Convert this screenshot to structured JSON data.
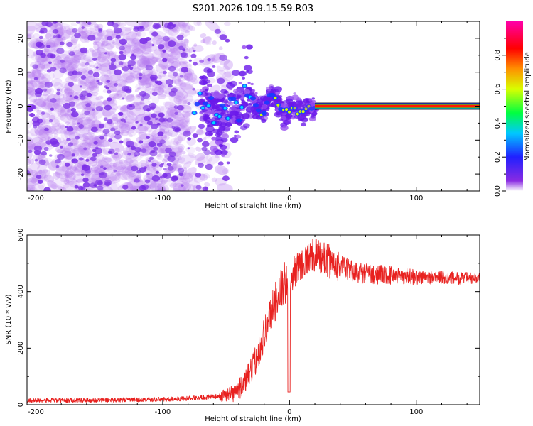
{
  "page_title": "S201.2026.109.15.59.R03",
  "colors": {
    "snr_line": "#e8211f",
    "axis": "#000000"
  },
  "chart_data": [
    {
      "type": "heatmap",
      "name": "spectrogram",
      "xlabel": "Height of straight line (km)",
      "ylabel": "Frequency (Hz)",
      "xlim": [
        -207,
        150
      ],
      "ylim": [
        -25,
        25
      ],
      "xticks": [
        -200,
        -100,
        0,
        100
      ],
      "xtick_labels": [
        "-200",
        "-100",
        "0",
        "100"
      ],
      "yticks": [
        -20,
        -10,
        0,
        10,
        20
      ],
      "ytick_labels": [
        "-20",
        "-10",
        "0",
        "10",
        "20"
      ],
      "noise_region_x": [
        -207,
        -48
      ],
      "transition_region_x": [
        -90,
        20
      ],
      "signal_band": {
        "x_start": 20,
        "x_end": 150,
        "frequency": 0
      },
      "colorbar": {
        "label": "Normalized spectral amplitude",
        "range": [
          0,
          1
        ],
        "ticks": [
          0,
          0.2,
          0.4,
          0.6,
          0.8
        ],
        "tick_labels": [
          "0.0",
          "0.2",
          "0.4",
          "0.6",
          "0.8"
        ],
        "colormap": [
          "#ffffff",
          "#8a2be2",
          "#2020ff",
          "#00c8ff",
          "#00ff40",
          "#d8ff00",
          "#ff9000",
          "#ff0000",
          "#ff00aa"
        ]
      }
    },
    {
      "type": "line",
      "name": "snr",
      "xlabel": "Height of straight line (km)",
      "ylabel": "SNR (10 * v/v)",
      "xlim": [
        -207,
        150
      ],
      "ylim": [
        0,
        600
      ],
      "xticks": [
        -200,
        -100,
        0,
        100
      ],
      "xtick_labels": [
        "-200",
        "-100",
        "0",
        "100"
      ],
      "yticks": [
        0,
        200,
        400,
        600
      ],
      "ytick_labels": [
        "0",
        "200",
        "400",
        "600"
      ],
      "series": [
        {
          "name": "SNR",
          "x": [
            -207,
            -190,
            -170,
            -150,
            -130,
            -110,
            -90,
            -70,
            -55,
            -45,
            -40,
            -35,
            -30,
            -25,
            -20,
            -15,
            -10,
            -5,
            0,
            5,
            10,
            15,
            20,
            25,
            30,
            40,
            50,
            60,
            70,
            80,
            90,
            100,
            110,
            120,
            130,
            140,
            150
          ],
          "values": [
            15,
            15,
            16,
            16,
            17,
            18,
            20,
            25,
            30,
            40,
            55,
            80,
            120,
            180,
            250,
            320,
            380,
            420,
            450,
            480,
            500,
            520,
            530,
            520,
            510,
            490,
            470,
            465,
            460,
            458,
            455,
            452,
            450,
            450,
            448,
            446,
            445
          ]
        }
      ]
    }
  ]
}
